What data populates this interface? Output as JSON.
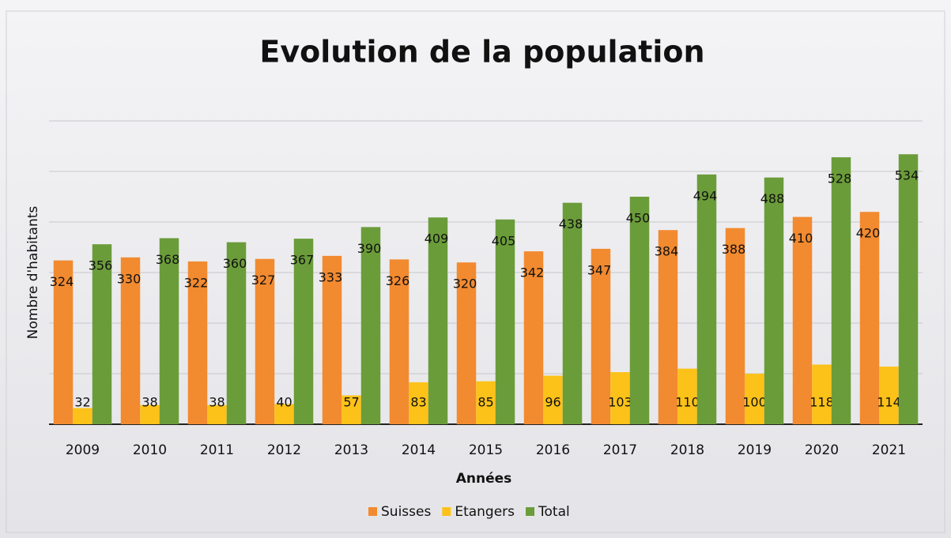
{
  "chart_data": {
    "type": "bar",
    "title": "Evolution de la population",
    "x_label": "Années",
    "y_label": "Nombre d'habitants",
    "categories": [
      "2009",
      "2010",
      "2011",
      "2012",
      "2013",
      "2014",
      "2015",
      "2016",
      "2017",
      "2018",
      "2019",
      "2020",
      "2021"
    ],
    "series": [
      {
        "name": "Suisses",
        "color": "#f28a30",
        "values": [
          324,
          330,
          322,
          327,
          333,
          326,
          320,
          342,
          347,
          384,
          388,
          410,
          420
        ]
      },
      {
        "name": "Etangers",
        "color": "#fcc219",
        "values": [
          32,
          38,
          38,
          40,
          57,
          83,
          85,
          96,
          103,
          110,
          100,
          118,
          114
        ]
      },
      {
        "name": "Total",
        "color": "#6b9c3a",
        "values": [
          356,
          368,
          360,
          367,
          390,
          409,
          405,
          438,
          450,
          494,
          488,
          528,
          534
        ]
      }
    ],
    "ylim": [
      0,
      600
    ],
    "yticks": [
      0,
      100,
      200,
      300,
      400,
      500,
      600
    ],
    "grid": true,
    "legend": "bottom"
  }
}
